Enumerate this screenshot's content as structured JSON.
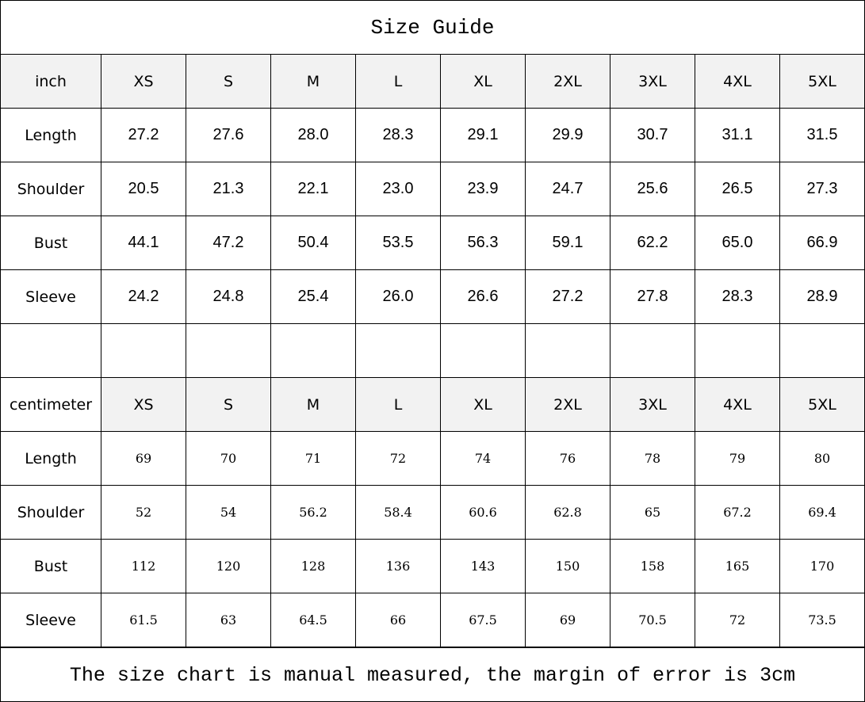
{
  "title": "Size Guide",
  "sizes": [
    "XS",
    "S",
    "M",
    "L",
    "XL",
    "2XL",
    "3XL",
    "4XL",
    "5XL"
  ],
  "inch": {
    "unit_label": "inch",
    "rows": [
      {
        "label": "Length",
        "values": [
          "27.2",
          "27.6",
          "28.0",
          "28.3",
          "29.1",
          "29.9",
          "30.7",
          "31.1",
          "31.5"
        ]
      },
      {
        "label": "Shoulder",
        "values": [
          "20.5",
          "21.3",
          "22.1",
          "23.0",
          "23.9",
          "24.7",
          "25.6",
          "26.5",
          "27.3"
        ]
      },
      {
        "label": "Bust",
        "values": [
          "44.1",
          "47.2",
          "50.4",
          "53.5",
          "56.3",
          "59.1",
          "62.2",
          "65.0",
          "66.9"
        ]
      },
      {
        "label": "Sleeve",
        "values": [
          "24.2",
          "24.8",
          "25.4",
          "26.0",
          "26.6",
          "27.2",
          "27.8",
          "28.3",
          "28.9"
        ]
      }
    ]
  },
  "cm": {
    "unit_label": "centimeter",
    "rows": [
      {
        "label": "Length",
        "values": [
          "69",
          "70",
          "71",
          "72",
          "74",
          "76",
          "78",
          "79",
          "80"
        ]
      },
      {
        "label": "Shoulder",
        "values": [
          "52",
          "54",
          "56.2",
          "58.4",
          "60.6",
          "62.8",
          "65",
          "67.2",
          "69.4"
        ]
      },
      {
        "label": "Bust",
        "values": [
          "112",
          "120",
          "128",
          "136",
          "143",
          "150",
          "158",
          "165",
          "170"
        ]
      },
      {
        "label": "Sleeve",
        "values": [
          "61.5",
          "63",
          "64.5",
          "66",
          "67.5",
          "69",
          "70.5",
          "72",
          "73.5"
        ]
      }
    ]
  },
  "footer": "The size chart is manual measured, the margin of error is 3cm",
  "colors": {
    "header_bg": "#f2f2f2",
    "border": "#000000"
  }
}
